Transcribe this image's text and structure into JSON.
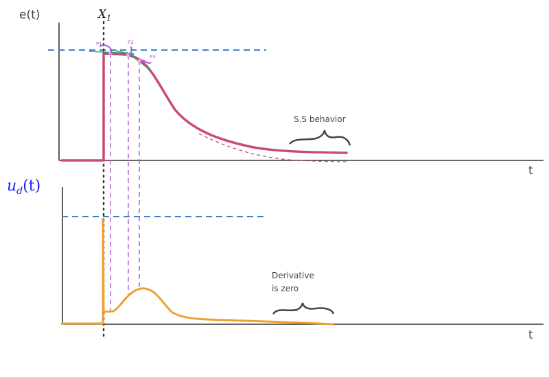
{
  "top_plot": {
    "ylabel": "e(t)",
    "xlabel": "t",
    "marker_label": "X",
    "marker_subscript": "1",
    "points": [
      "P1",
      "P2",
      "P3"
    ],
    "annotation": "S.S behavior"
  },
  "bottom_plot": {
    "ylabel_main": "u",
    "ylabel_sub": "d",
    "ylabel_arg": "(t)",
    "xlabel": "t",
    "annotation_line1": "Derivative",
    "annotation_line2": "is zero"
  },
  "colors": {
    "error_curve": "#c94a7a",
    "derivative_curve": "#f0a030",
    "reference": "#3b82c8",
    "tangent": "#2aa070",
    "guides": "#b05ad0",
    "ylabel_blue": "#1a1aff"
  }
}
